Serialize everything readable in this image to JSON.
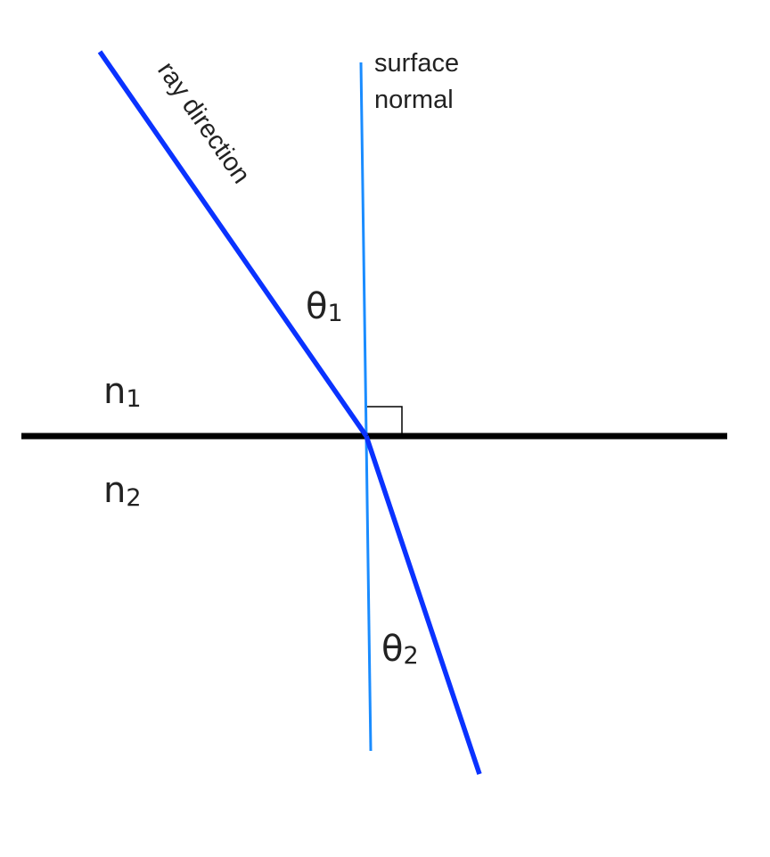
{
  "labels": {
    "ray_direction": "ray direction",
    "surface_normal_line1": "surface",
    "surface_normal_line2": "normal",
    "theta1_symbol": "θ",
    "theta1_subscript": "1",
    "theta2_symbol": "θ",
    "theta2_subscript": "2",
    "n1_symbol": "n",
    "n1_subscript": "1",
    "n2_symbol": "n",
    "n2_subscript": "2"
  },
  "colors": {
    "ray": "#0a32ff",
    "normal": "#1a8cff",
    "interface": "#000000",
    "text": "#222222",
    "right_angle_marker": "#000000"
  }
}
